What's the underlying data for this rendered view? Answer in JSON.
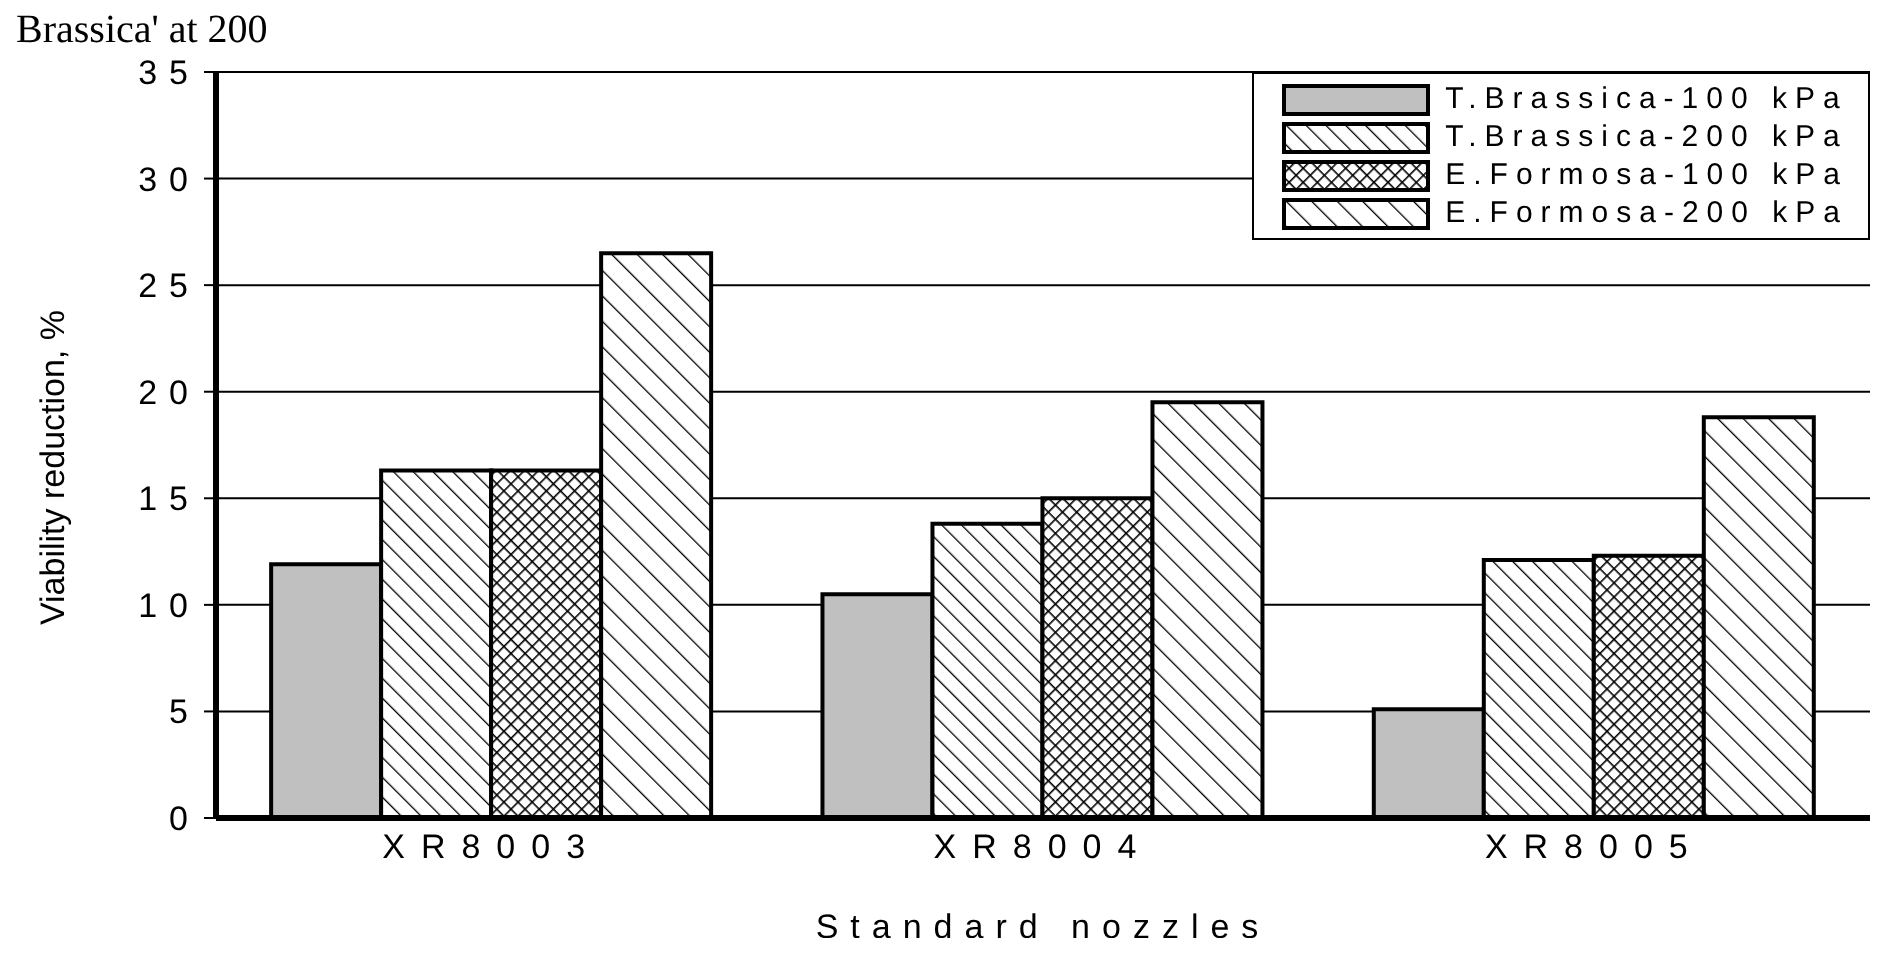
{
  "chart_data": {
    "type": "bar",
    "annotations": [
      "Brassica' at 200"
    ],
    "xlabel": "Standard nozzles",
    "ylabel": "Viability reduction, %",
    "categories": [
      "XR8003",
      "XR8004",
      "XR8005"
    ],
    "series": [
      {
        "name": "T.Brassica-100 kPa",
        "color": "#c0c0c0",
        "values": [
          11.9,
          10.5,
          5.1
        ]
      },
      {
        "name": "T.Brassica-200 kPa",
        "color": "#000000",
        "values": [
          16.3,
          13.8,
          12.1
        ]
      },
      {
        "name": "E.Formosa-100 kPa",
        "color": "#000000",
        "values": [
          16.3,
          15.0,
          12.3
        ]
      },
      {
        "name": "E.Formosa-200 kPa",
        "color": "#000000",
        "values": [
          26.5,
          19.5,
          18.8
        ]
      }
    ],
    "ylim": [
      0,
      35
    ],
    "yticks": [
      0,
      5,
      10,
      15,
      20,
      25,
      30,
      35
    ],
    "grid": "y",
    "legend": "top right"
  }
}
